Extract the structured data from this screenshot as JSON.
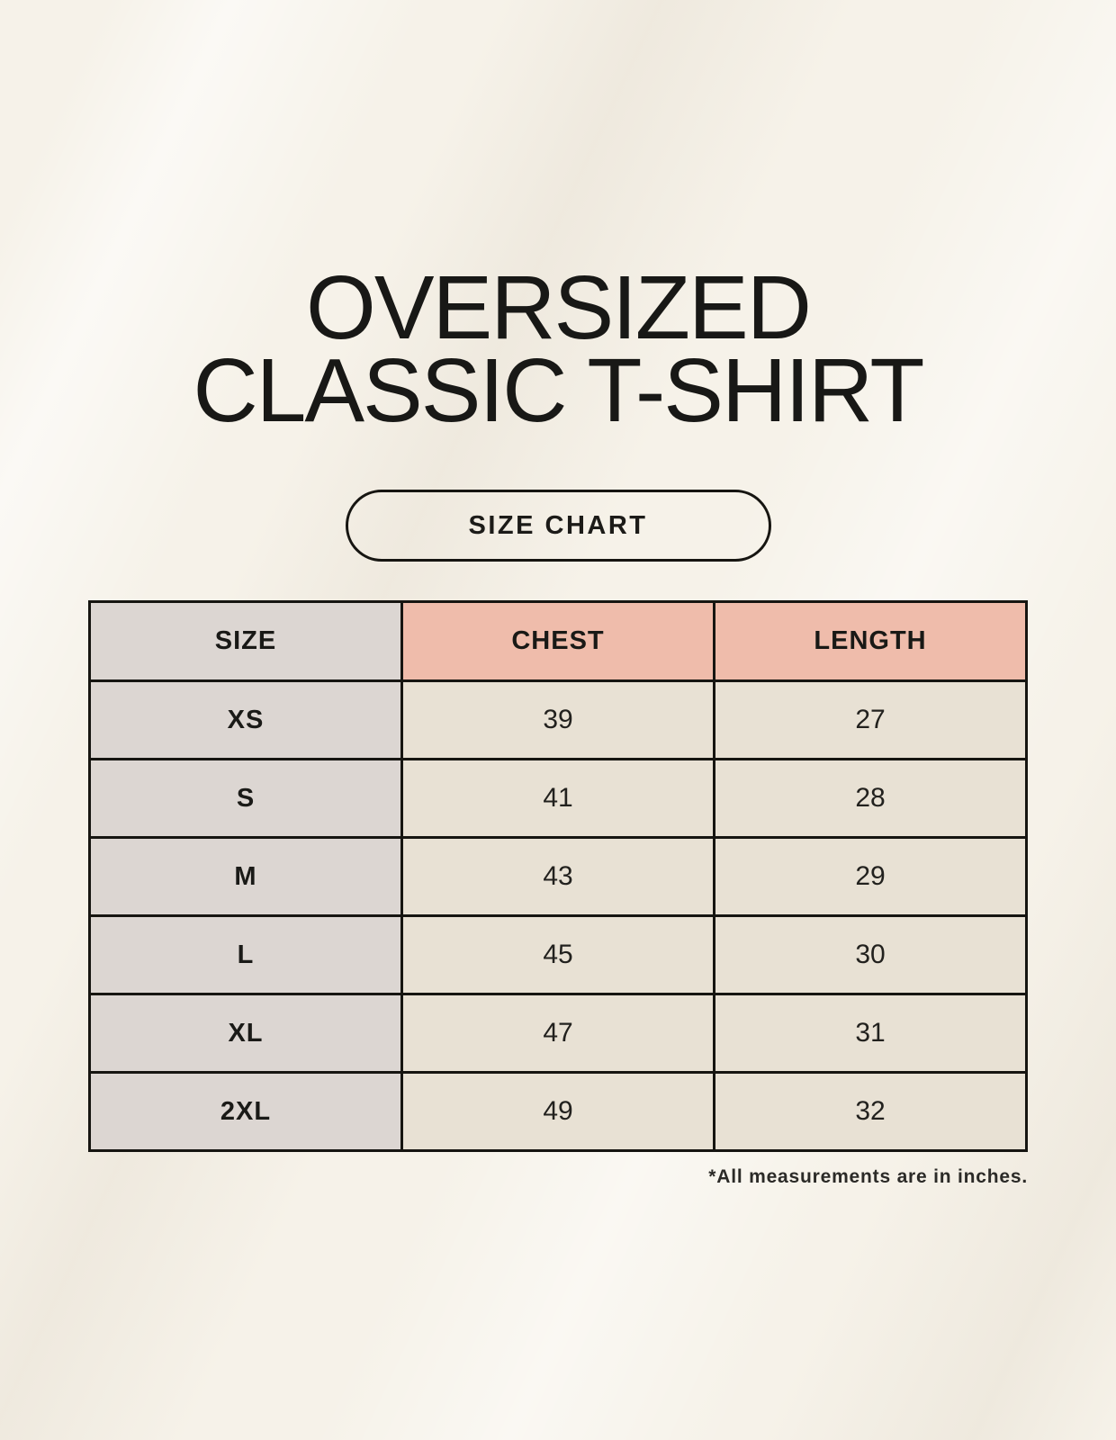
{
  "page": {
    "title_line1": "OVERSIZED",
    "title_line2": "CLASSIC T-SHIRT",
    "size_chart_button_label": "SIZE CHART",
    "footnote": "*All measurements are in inches."
  },
  "table": {
    "columns": [
      "SIZE",
      "CHEST",
      "LENGTH"
    ],
    "rows": [
      {
        "size": "XS",
        "chest": "39",
        "length": "27"
      },
      {
        "size": "S",
        "chest": "41",
        "length": "28"
      },
      {
        "size": "M",
        "chest": "43",
        "length": "29"
      },
      {
        "size": "L",
        "chest": "45",
        "length": "30"
      },
      {
        "size": "XL",
        "chest": "47",
        "length": "31"
      },
      {
        "size": "2XL",
        "chest": "49",
        "length": "32"
      }
    ]
  },
  "colors": {
    "background": "#f6f2e9",
    "header_accent": "#efbcab",
    "size_column": "#dcd6d2",
    "cell_beige": "#e8e1d4",
    "border": "#161511",
    "text": "#1a1a18"
  },
  "chart_data": {
    "type": "table",
    "title": "OVERSIZED CLASSIC T-SHIRT",
    "subtitle": "SIZE CHART",
    "columns": [
      "SIZE",
      "CHEST",
      "LENGTH"
    ],
    "rows": [
      [
        "XS",
        39,
        27
      ],
      [
        "S",
        41,
        28
      ],
      [
        "M",
        43,
        29
      ],
      [
        "L",
        45,
        30
      ],
      [
        "XL",
        47,
        31
      ],
      [
        "2XL",
        49,
        32
      ]
    ],
    "units": "inches",
    "note": "*All measurements are in inches."
  }
}
